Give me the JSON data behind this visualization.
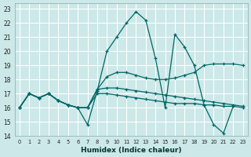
{
  "xlabel": "Humidex (Indice chaleur)",
  "bg_color": "#cce8e8",
  "grid_color": "#ffffff",
  "line_color": "#006666",
  "xlim": [
    -0.5,
    23.5
  ],
  "ylim": [
    14,
    23.4
  ],
  "xticks": [
    0,
    1,
    2,
    3,
    4,
    5,
    6,
    7,
    8,
    9,
    10,
    11,
    12,
    13,
    14,
    15,
    16,
    17,
    18,
    19,
    20,
    21,
    22,
    23
  ],
  "yticks": [
    14,
    15,
    16,
    17,
    18,
    19,
    20,
    21,
    22,
    23
  ],
  "series1_x": [
    0,
    1,
    2,
    3,
    4,
    5,
    6,
    7,
    8,
    9,
    10,
    11,
    12,
    13,
    14,
    15,
    16,
    17,
    18,
    19,
    20,
    21,
    22
  ],
  "series1_y": [
    16,
    17,
    16.7,
    17,
    16.5,
    16.2,
    16,
    14.8,
    17.2,
    20,
    21,
    22,
    22.8,
    22.2,
    19.5,
    16,
    21.2,
    20.3,
    19,
    16.2,
    14.8,
    14.2,
    16.1
  ],
  "series2_x": [
    0,
    1,
    2,
    3,
    4,
    5,
    6,
    7,
    8,
    9,
    10,
    11,
    12,
    13,
    14,
    15,
    16,
    17,
    18,
    19,
    20,
    21,
    22,
    23
  ],
  "series2_y": [
    16,
    17,
    16.7,
    17,
    16.5,
    16.2,
    16,
    16,
    17.3,
    18.2,
    18.5,
    18.5,
    18.3,
    18.1,
    18,
    18,
    18.1,
    18.3,
    18.5,
    19,
    19.1,
    19.1,
    19.1,
    19
  ],
  "series3_x": [
    0,
    1,
    2,
    3,
    4,
    5,
    6,
    7,
    8,
    9,
    10,
    11,
    12,
    13,
    14,
    15,
    16,
    17,
    18,
    19,
    20,
    21,
    22,
    23
  ],
  "series3_y": [
    16,
    17,
    16.7,
    17,
    16.5,
    16.2,
    16,
    16,
    17.3,
    17.4,
    17.4,
    17.3,
    17.2,
    17.1,
    17,
    16.9,
    16.8,
    16.7,
    16.6,
    16.5,
    16.4,
    16.3,
    16.2,
    16.1
  ],
  "series4_x": [
    0,
    1,
    2,
    3,
    4,
    5,
    6,
    7,
    8,
    9,
    10,
    11,
    12,
    13,
    14,
    15,
    16,
    17,
    18,
    19,
    20,
    21,
    22,
    23
  ],
  "series4_y": [
    16,
    17,
    16.7,
    17,
    16.5,
    16.2,
    16,
    16,
    17,
    17,
    16.9,
    16.8,
    16.7,
    16.6,
    16.5,
    16.4,
    16.3,
    16.3,
    16.3,
    16.2,
    16.2,
    16.1,
    16.1,
    16
  ]
}
